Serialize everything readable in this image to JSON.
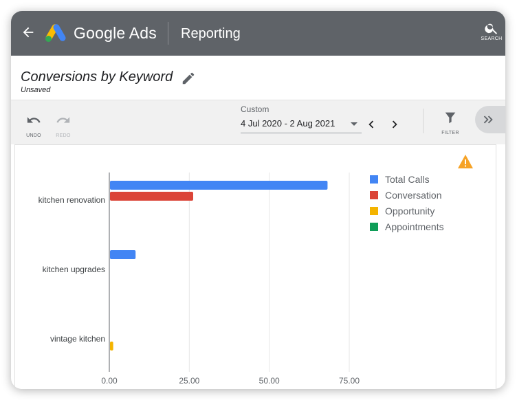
{
  "header": {
    "brand": "Google Ads",
    "section": "Reporting",
    "search_label": "SEARCH",
    "bg_color": "#5f6368"
  },
  "report": {
    "title": "Conversions by Keyword",
    "status": "Unsaved"
  },
  "toolbar": {
    "undo_label": "UNDO",
    "redo_label": "REDO",
    "date_caption": "Custom",
    "date_range": "4 Jul 2020 - 2 Aug 2021",
    "filter_label": "FILTER"
  },
  "icons": {
    "back": "arrow-back-icon",
    "logo": "google-ads-logo",
    "search": "search-icon",
    "edit": "pencil-icon",
    "undo": "undo-icon",
    "redo": "redo-icon",
    "prev": "chevron-left-icon",
    "next": "chevron-right-icon",
    "filter": "filter-icon",
    "expand": "double-chevron-right-icon",
    "warning": "warning-icon"
  },
  "chart_data": {
    "type": "bar",
    "orientation": "horizontal",
    "categories": [
      "kitchen renovation",
      "kitchen upgrades",
      "vintage kitchen"
    ],
    "series": [
      {
        "name": "Total Calls",
        "color": "#4285f4",
        "values": [
          68,
          8,
          0
        ]
      },
      {
        "name": "Conversation",
        "color": "#db4437",
        "values": [
          26,
          0,
          0
        ]
      },
      {
        "name": "Opportunity",
        "color": "#f4b400",
        "values": [
          0,
          0,
          1
        ]
      },
      {
        "name": "Appointments",
        "color": "#0f9d58",
        "values": [
          0,
          0,
          0
        ]
      }
    ],
    "xlim": [
      0,
      75
    ],
    "x_ticks": [
      "0.00",
      "25.00",
      "50.00",
      "75.00"
    ],
    "x_tick_values": [
      0,
      25,
      50,
      75
    ],
    "grid": "vertical",
    "legend_position": "right"
  }
}
